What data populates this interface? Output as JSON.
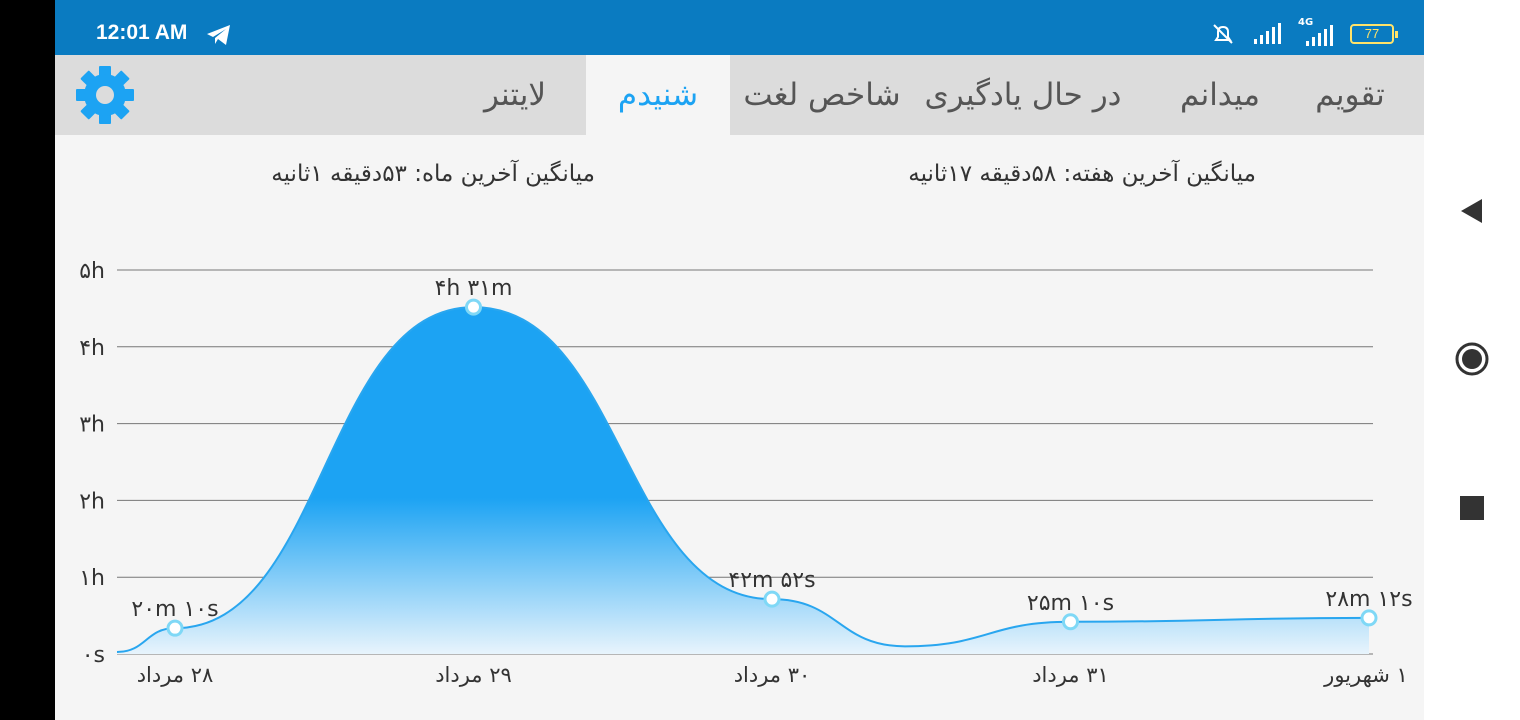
{
  "status_bar": {
    "time": "12:01 AM",
    "battery": "77",
    "network": "4G",
    "icons": [
      "telegram-icon",
      "alarm-off-icon",
      "signal-icon",
      "signal-4g-icon",
      "battery-icon"
    ]
  },
  "tabs": [
    {
      "label": "تقویم",
      "active": false
    },
    {
      "label": "میدانم",
      "active": false
    },
    {
      "label": "در حال یادگیری",
      "active": false
    },
    {
      "label": "شاخص لغت",
      "active": false
    },
    {
      "label": "شنیدم",
      "active": true
    },
    {
      "label": "لایتنر",
      "active": false
    }
  ],
  "settings_icon": "gear-icon",
  "summary": {
    "week_avg": "میانگین آخرین هفته: ۵۸دقیقه  ۱۷ثانیه",
    "month_avg": "میانگین آخرین ماه: ۵۳دقیقه  ۱ثانیه"
  },
  "chart_data": {
    "type": "area",
    "x": [
      "۲۸ مرداد",
      "۲۹ مرداد",
      "۳۰ مرداد",
      "۳۱ مرداد",
      "۱ شهریور"
    ],
    "values": [
      20.17,
      271,
      42.87,
      25.17,
      28.2
    ],
    "data_labels": [
      "۲۰m ۱۰s",
      "۴h ۳۱m",
      "۴۲m ۵۲s",
      "۲۵m ۱۰s",
      "۲۸m ۱۲s"
    ],
    "y_unit": "minutes",
    "y_ticks": [
      "۰s",
      "۱h",
      "۲h",
      "۳h",
      "۴h",
      "۵h"
    ],
    "ylim": [
      0,
      300
    ],
    "grid": true,
    "colors": {
      "fill_top": "#1ca3f3",
      "fill_bottom": "#e8f4fc",
      "line": "#29a6ef",
      "point": "#7fd8f6"
    }
  },
  "nav_icons": [
    "back-icon",
    "home-icon",
    "recents-icon"
  ]
}
